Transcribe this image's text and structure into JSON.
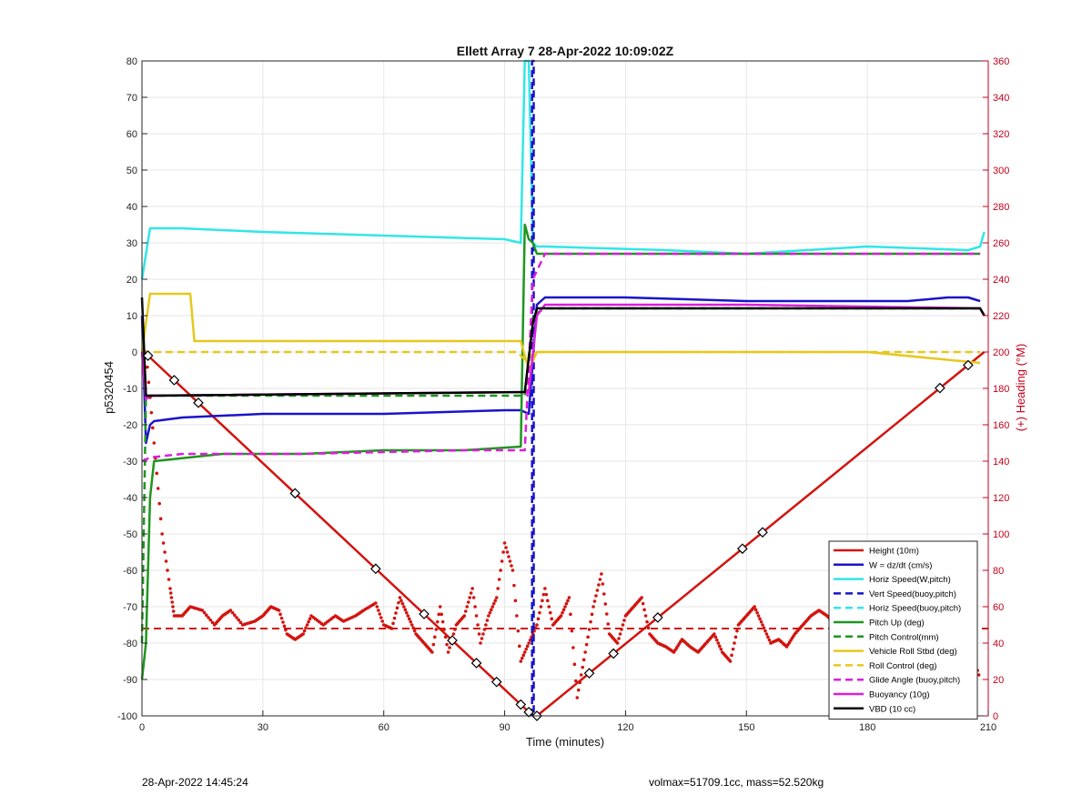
{
  "chart_data": {
    "type": "line",
    "title": "Ellett Array 7 28-Apr-2022 10:09:02Z",
    "xlabel": "Time (minutes)",
    "ylabel": "p5320454",
    "ylabel_right": "(+) Heading (°M)",
    "xlim": [
      0,
      210
    ],
    "ylim": [
      -100,
      80
    ],
    "ylim_right": [
      0,
      360
    ],
    "xticks": [
      0,
      30,
      60,
      90,
      120,
      150,
      180,
      210
    ],
    "yticks": [
      -100,
      -90,
      -80,
      -70,
      -60,
      -50,
      -40,
      -30,
      -20,
      -10,
      0,
      10,
      20,
      30,
      40,
      50,
      60,
      70,
      80
    ],
    "yticks_right": [
      0,
      20,
      40,
      60,
      80,
      100,
      120,
      140,
      160,
      180,
      200,
      220,
      240,
      260,
      280,
      300,
      320,
      340,
      360
    ],
    "grid": true,
    "legend_position": "bottom-right",
    "colors": {
      "red": "#d2140f",
      "blue": "#1a14c8",
      "cyan": "#32e6e6",
      "green": "#1e961e",
      "yellow": "#e6c81e",
      "magenta": "#dc1edc",
      "black": "#000000"
    },
    "series": [
      {
        "name": "Height (10m)",
        "color": "#d2140f",
        "style": "solid",
        "x": [
          0,
          1.5,
          97,
          98,
          209
        ],
        "y": [
          0,
          -1,
          -100,
          -100,
          0
        ]
      },
      {
        "name": "W = dz/dt (cm/s)",
        "color": "#1a14c8",
        "style": "solid",
        "x": [
          0,
          1,
          2,
          3,
          10,
          30,
          60,
          90,
          94,
          96,
          98,
          100,
          120,
          150,
          190,
          200,
          205,
          208
        ],
        "y": [
          10,
          -25,
          -20,
          -19,
          -18,
          -17,
          -17,
          -16,
          -16,
          -17,
          13,
          15,
          15,
          14,
          14,
          15,
          15,
          14
        ]
      },
      {
        "name": "Horiz Speed(W,pitch)",
        "color": "#32e6e6",
        "style": "solid",
        "x": [
          0,
          2,
          10,
          30,
          60,
          90,
          94,
          95,
          96,
          97,
          98,
          100,
          130,
          150,
          180,
          205,
          208,
          209
        ],
        "y": [
          20,
          34,
          34,
          33,
          32,
          31,
          30,
          80,
          80,
          30,
          29,
          29,
          28,
          27,
          29,
          28,
          29,
          33
        ]
      },
      {
        "name": "Vert Speed(buoy,pitch)",
        "color": "#1a14c8",
        "style": "dashed",
        "x": [
          96.8,
          96.8,
          97.2,
          97.2
        ],
        "y": [
          -100,
          80,
          80,
          -100
        ]
      },
      {
        "name": "Horiz Speed(buoy,pitch)",
        "color": "#32e6e6",
        "style": "dashed",
        "x": [],
        "y": []
      },
      {
        "name": "Pitch Up (deg)",
        "color": "#1e961e",
        "style": "solid",
        "x": [
          0,
          1,
          2,
          3,
          20,
          40,
          60,
          80,
          94,
          95,
          96,
          97,
          98,
          100,
          150,
          200,
          208
        ],
        "y": [
          -90,
          -80,
          -40,
          -30,
          -28,
          -28,
          -27,
          -27,
          -26,
          35,
          31,
          30,
          27,
          27,
          27,
          27,
          27
        ]
      },
      {
        "name": "Pitch Control(mm)",
        "color": "#1e961e",
        "style": "dashed",
        "x": [
          0,
          1,
          2,
          95,
          97,
          100,
          150,
          208
        ],
        "y": [
          -80,
          -12,
          -12,
          -12,
          10,
          12,
          12,
          12
        ]
      },
      {
        "name": "Vehicle Roll Stbd (deg)",
        "color": "#e6c81e",
        "style": "solid",
        "x": [
          0,
          2,
          12,
          13,
          40,
          60,
          90,
          94,
          96,
          98,
          100,
          140,
          180,
          208
        ],
        "y": [
          0,
          16,
          16,
          3,
          3,
          3,
          3,
          3,
          -5,
          0,
          0,
          0,
          0,
          -3
        ]
      },
      {
        "name": "Roll Control (deg)",
        "color": "#e6c81e",
        "style": "dashed",
        "x": [
          0,
          3,
          30,
          60,
          93,
          95,
          98,
          120,
          150,
          208
        ],
        "y": [
          0,
          0,
          0,
          0,
          0,
          -2,
          0,
          0,
          0,
          0
        ]
      },
      {
        "name": "Glide Angle (buoy,pitch)",
        "color": "#dc1edc",
        "style": "dashed",
        "x": [
          0,
          2,
          10,
          40,
          80,
          95,
          97,
          100,
          150,
          208
        ],
        "y": [
          -30,
          -29,
          -28,
          -28,
          -27,
          -27,
          20,
          27,
          27,
          27
        ]
      },
      {
        "name": "Buoyancy (10g)",
        "color": "#dc1edc",
        "style": "solid",
        "x": [
          0,
          1,
          2,
          96,
          98,
          100,
          150,
          208,
          209
        ],
        "y": [
          0,
          -13,
          -12,
          -11,
          10,
          13,
          13,
          12,
          10
        ]
      },
      {
        "name": "VBD (10 cc)",
        "color": "#000000",
        "style": "solid",
        "x": [
          0,
          1,
          2,
          95,
          97,
          98,
          208,
          209
        ],
        "y": [
          15,
          -12,
          -12,
          -11,
          8,
          12,
          12,
          10
        ]
      }
    ],
    "heading_series": {
      "color": "#d2140f",
      "axis": "right",
      "reference": 48,
      "x": [
        1,
        3,
        5,
        7,
        8,
        10,
        12,
        15,
        18,
        20,
        22,
        25,
        28,
        30,
        32,
        34,
        36,
        38,
        40,
        42,
        45,
        48,
        50,
        53,
        55,
        58,
        60,
        62,
        64,
        66,
        68,
        70,
        72,
        74,
        76,
        78,
        80,
        82,
        84,
        86,
        88,
        90,
        92,
        94,
        96,
        98,
        100,
        102,
        104,
        106,
        108,
        110,
        112,
        114,
        116,
        118,
        120,
        122,
        124,
        126,
        128,
        130,
        132,
        134,
        136,
        138,
        140,
        142,
        144,
        146,
        148,
        150,
        152,
        154,
        156,
        158,
        160,
        162,
        164,
        166,
        168,
        170,
        172,
        174,
        176,
        178,
        180,
        182,
        184,
        186,
        188,
        190,
        192,
        194,
        196,
        198,
        200,
        202,
        204,
        206,
        208
      ],
      "y": [
        200,
        150,
        100,
        70,
        55,
        55,
        60,
        58,
        50,
        55,
        58,
        50,
        52,
        55,
        60,
        58,
        45,
        42,
        45,
        55,
        50,
        55,
        52,
        55,
        58,
        62,
        50,
        48,
        65,
        55,
        45,
        40,
        35,
        60,
        35,
        50,
        55,
        70,
        40,
        55,
        65,
        95,
        80,
        30,
        40,
        50,
        70,
        50,
        55,
        65,
        10,
        35,
        60,
        78,
        45,
        40,
        55,
        60,
        65,
        45,
        40,
        38,
        35,
        42,
        38,
        35,
        40,
        45,
        35,
        30,
        50,
        55,
        60,
        50,
        40,
        42,
        38,
        45,
        50,
        55,
        58,
        55,
        50,
        52,
        55,
        50,
        48,
        50,
        45,
        55,
        60,
        65,
        50,
        45,
        55,
        40,
        50,
        45,
        55,
        35,
        20
      ]
    },
    "legend_entries": [
      {
        "label": "Height (10m)",
        "color": "#d2140f",
        "style": "solid"
      },
      {
        "label": "W = dz/dt (cm/s)",
        "color": "#1a14c8",
        "style": "solid"
      },
      {
        "label": "Horiz Speed(W,pitch)",
        "color": "#32e6e6",
        "style": "solid"
      },
      {
        "label": "Vert Speed(buoy,pitch)",
        "color": "#1a14c8",
        "style": "dashed"
      },
      {
        "label": "Horiz Speed(buoy,pitch)",
        "color": "#32e6e6",
        "style": "dashed"
      },
      {
        "label": "Pitch Up (deg)",
        "color": "#1e961e",
        "style": "solid"
      },
      {
        "label": "Pitch Control(mm)",
        "color": "#1e961e",
        "style": "dashed"
      },
      {
        "label": "Vehicle Roll Stbd (deg)",
        "color": "#e6c81e",
        "style": "solid"
      },
      {
        "label": "Roll Control (deg)",
        "color": "#e6c81e",
        "style": "dashed"
      },
      {
        "label": "Glide Angle (buoy,pitch)",
        "color": "#dc1edc",
        "style": "dashed"
      },
      {
        "label": "Buoyancy (10g)",
        "color": "#dc1edc",
        "style": "solid"
      },
      {
        "label": "VBD (10 cc)",
        "color": "#000000",
        "style": "solid"
      }
    ]
  },
  "footer": {
    "timestamp": "28-Apr-2022 14:45:24",
    "vehicle_info": "volmax=51709.1cc, mass=52.520kg"
  }
}
